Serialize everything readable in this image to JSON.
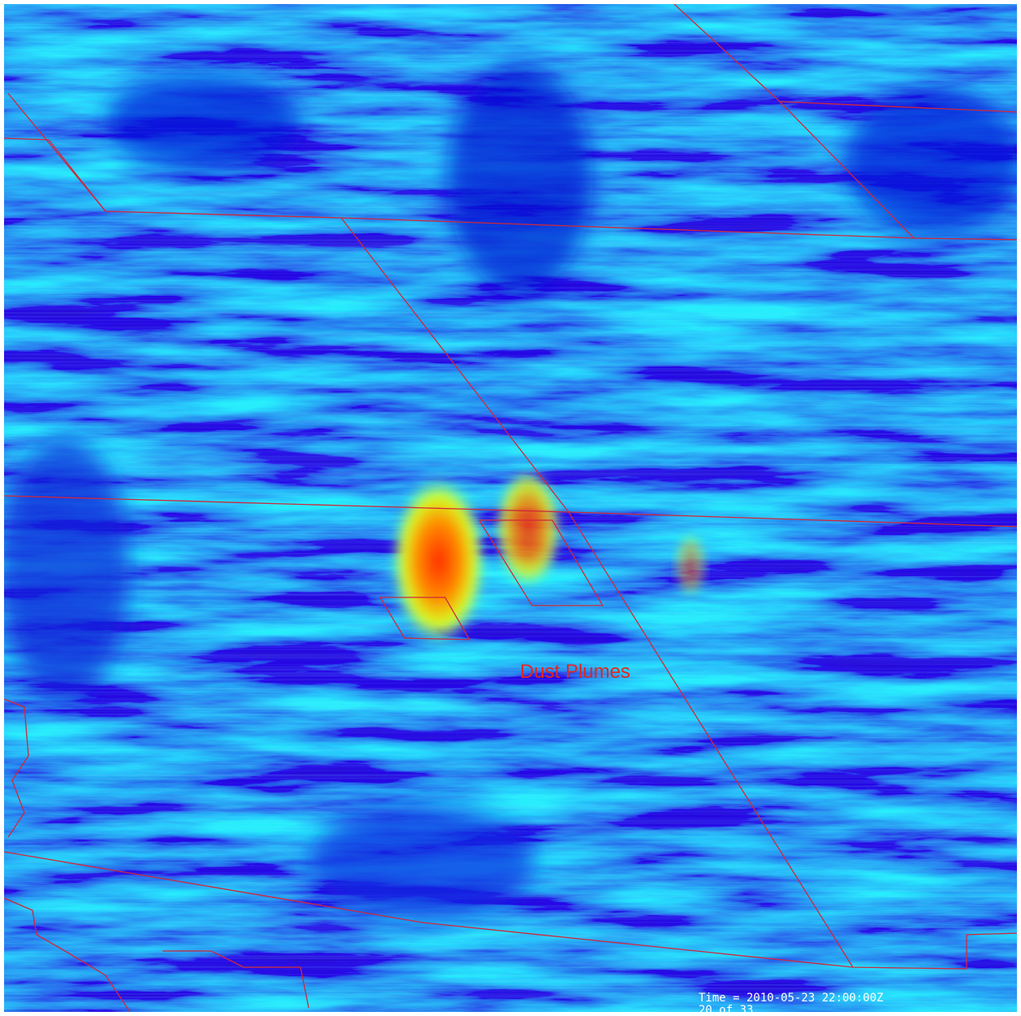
{
  "annotation": "Dust Plumes",
  "timestamp": "Time = 2010-05-23 22:00:00Z",
  "frame": "20 of 33"
}
